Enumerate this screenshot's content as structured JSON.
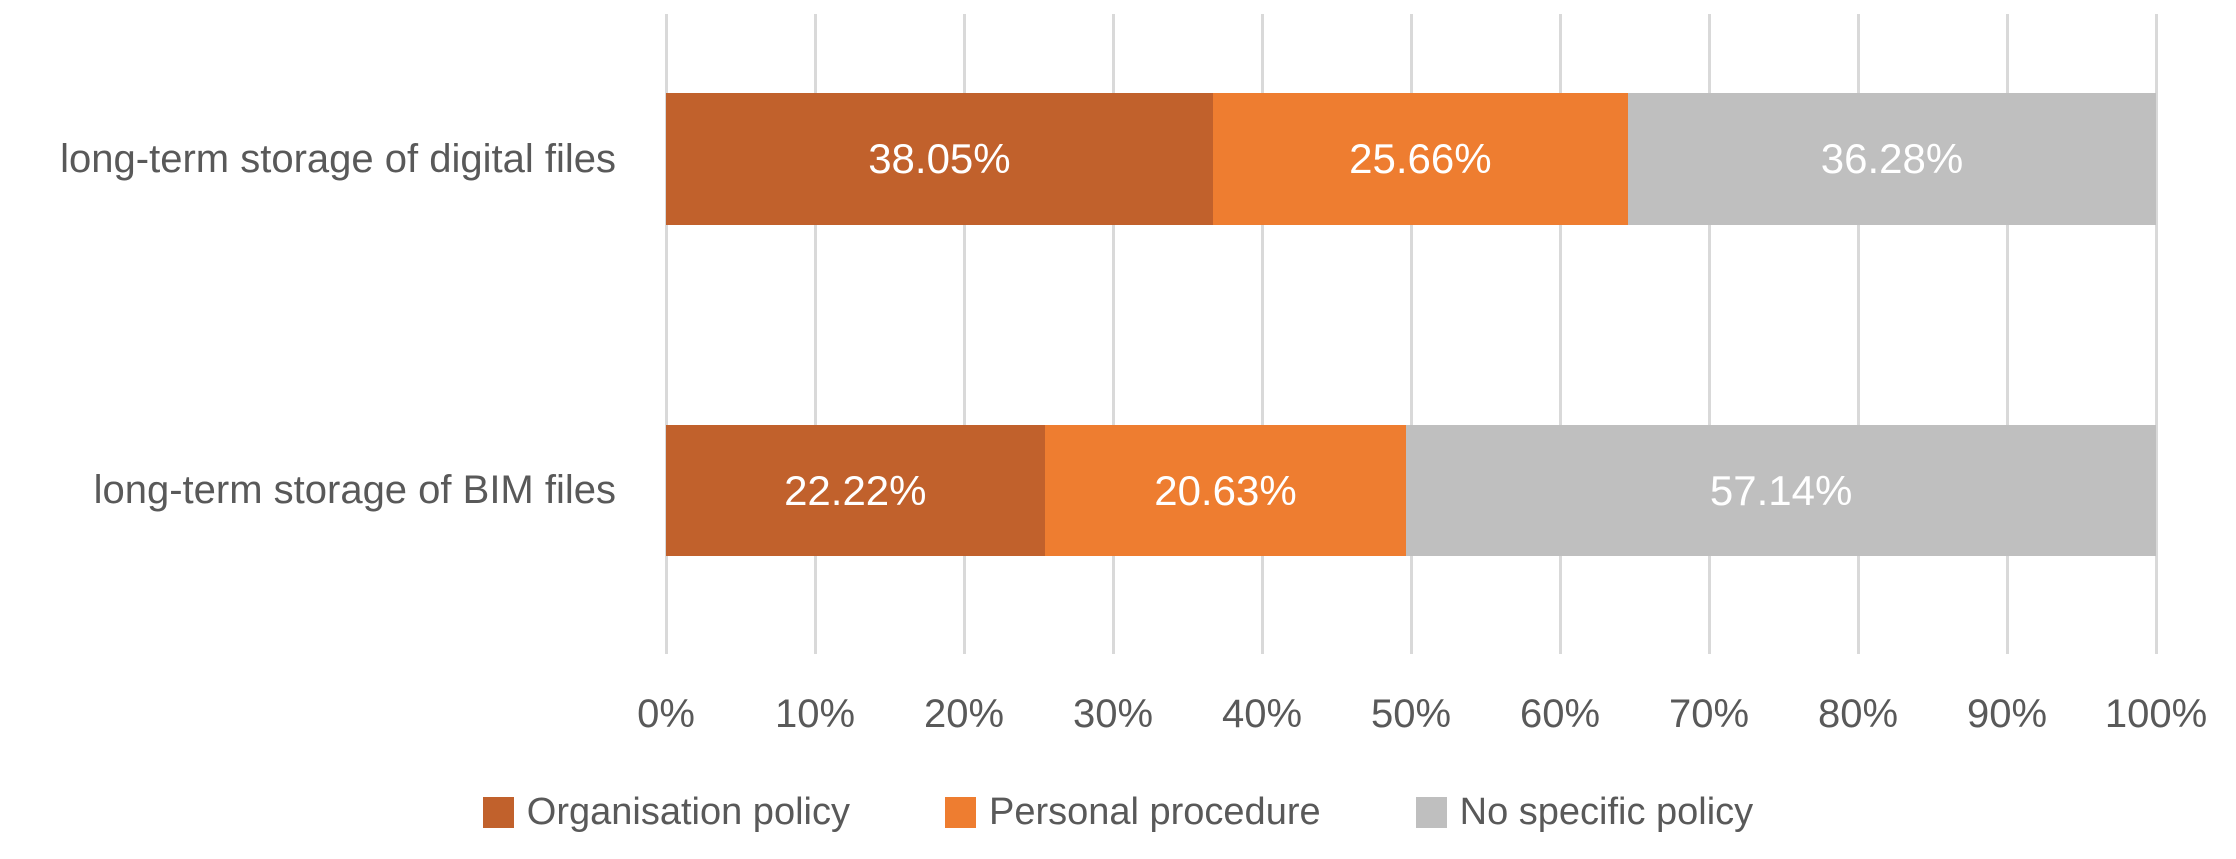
{
  "chart_data": {
    "type": "bar",
    "orientation": "horizontal",
    "stacked": true,
    "title": "",
    "categories": [
      "long-term storage of digital files",
      "long-term storage of BIM files"
    ],
    "series": [
      {
        "name": "Organisation policy",
        "color": "#c1612c",
        "values": [
          38.05,
          22.22
        ],
        "labels": [
          "38.05%",
          "22.22%"
        ]
      },
      {
        "name": "Personal procedure",
        "color": "#ee7d30",
        "values": [
          25.66,
          20.63
        ],
        "labels": [
          "25.66%",
          "20.63%"
        ]
      },
      {
        "name": "No specific policy",
        "color": "#bfbfbf",
        "values": [
          36.28,
          57.14
        ],
        "labels": [
          "36.28%",
          "57.14%"
        ]
      }
    ],
    "x_axis": {
      "range": [
        0,
        100
      ],
      "ticks": [
        {
          "label": "0%",
          "value": 0
        },
        {
          "label": "10%",
          "value": 10
        },
        {
          "label": "20%",
          "value": 20
        },
        {
          "label": "30%",
          "value": 30
        },
        {
          "label": "40%",
          "value": 40
        },
        {
          "label": "50%",
          "value": 50
        },
        {
          "label": "60%",
          "value": 60
        },
        {
          "label": "70%",
          "value": 70
        },
        {
          "label": "80%",
          "value": 80
        },
        {
          "label": "90%",
          "value": 90
        },
        {
          "label": "100%",
          "value": 100
        }
      ]
    },
    "grid": true,
    "legend_position": "bottom",
    "style_colors": {
      "gridline": "#d9d9d9",
      "axis_text": "#595959",
      "data_label_text": "#ffffff",
      "background": "#ffffff"
    }
  }
}
